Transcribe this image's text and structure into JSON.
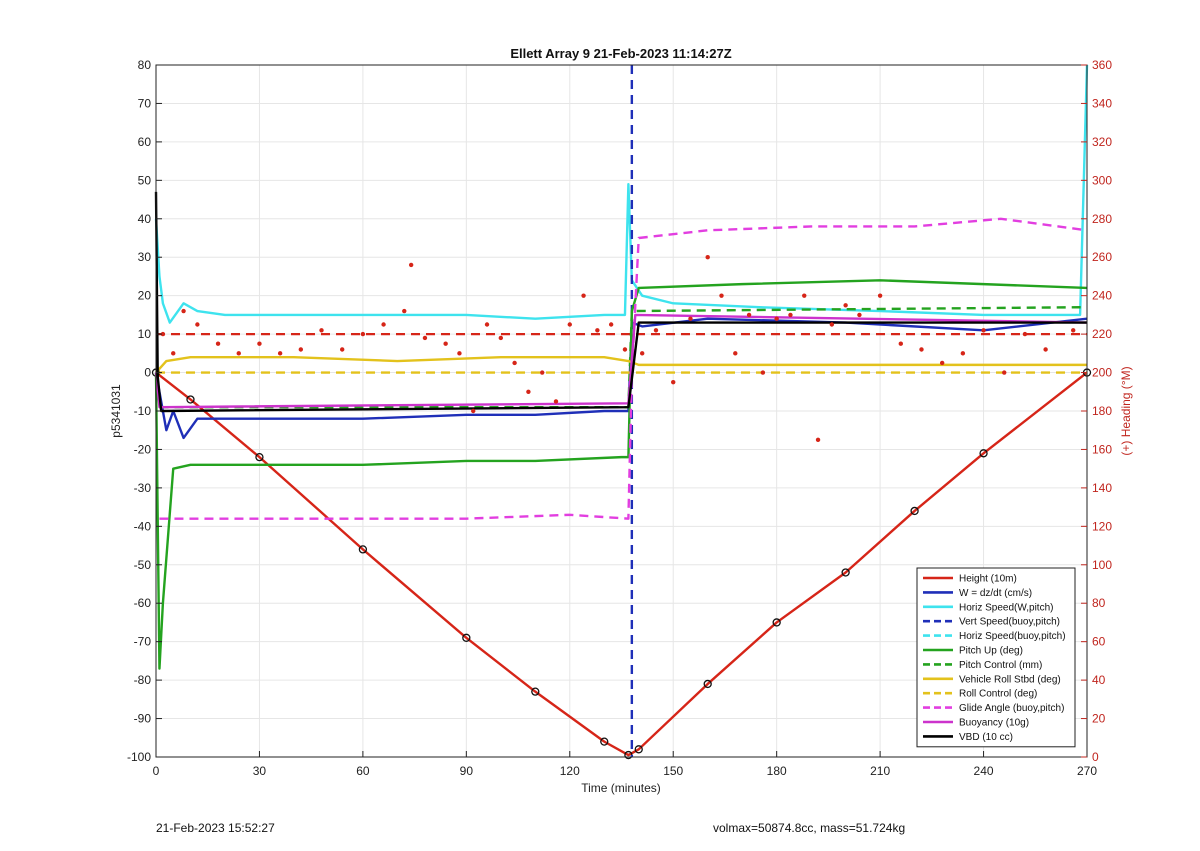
{
  "chart_data": {
    "type": "line",
    "title": "Ellett Array 9 21-Feb-2023 11:14:27Z",
    "xlabel": "Time (minutes)",
    "ylabel": "p5341031",
    "y2label": "(+) Heading (°M)",
    "xlim": [
      0,
      270
    ],
    "ylim": [
      -100,
      80
    ],
    "y2lim": [
      0,
      360
    ],
    "xticks": [
      "0",
      "30",
      "60",
      "90",
      "120",
      "150",
      "180",
      "210",
      "240",
      "270"
    ],
    "yticks": [
      "80",
      "70",
      "60",
      "50",
      "40",
      "30",
      "20",
      "10",
      "0",
      "-10",
      "-20",
      "-30",
      "-40",
      "-50",
      "-60",
      "-70",
      "-80",
      "-90",
      "-100"
    ],
    "y2ticks": [
      "360",
      "340",
      "320",
      "300",
      "280",
      "260",
      "240",
      "220",
      "200",
      "180",
      "160",
      "140",
      "120",
      "100",
      "80",
      "60",
      "40",
      "20",
      "0"
    ],
    "grid": true,
    "legend_position": "bottom-right",
    "series": [
      {
        "name": "Height (10m)",
        "color": "#d62518",
        "style": "solid",
        "axis": "left",
        "x": [
          0,
          10,
          30,
          60,
          90,
          110,
          130,
          137,
          140,
          160,
          180,
          200,
          220,
          240,
          270
        ],
        "y": [
          0,
          -7,
          -22,
          -46,
          -69,
          -83,
          -96,
          -99.5,
          -98,
          -81,
          -65,
          -52,
          -36,
          -21,
          0
        ]
      },
      {
        "name": "W = dz/dt (cm/s)",
        "color": "#1f2fb8",
        "style": "solid",
        "axis": "left",
        "x": [
          0,
          1,
          3,
          5,
          8,
          12,
          20,
          40,
          60,
          90,
          110,
          130,
          137,
          138,
          141,
          160,
          200,
          240,
          270
        ],
        "y": [
          0,
          -5,
          -15,
          -10,
          -17,
          -12,
          -12,
          -12,
          -12,
          -11,
          -11,
          -10,
          -10,
          13,
          12,
          14,
          13,
          11,
          14
        ]
      },
      {
        "name": "Horiz Speed(W,pitch)",
        "color": "#3ee3ee",
        "style": "solid",
        "axis": "left",
        "x": [
          0,
          1,
          2,
          4,
          8,
          12,
          20,
          40,
          60,
          90,
          110,
          130,
          136,
          137,
          138,
          141,
          150,
          175,
          210,
          240,
          268,
          270
        ],
        "y": [
          40,
          25,
          18,
          13,
          18,
          16,
          15,
          15,
          15,
          15,
          14,
          15,
          15,
          49,
          24,
          20,
          18,
          17,
          16,
          15,
          15,
          80
        ]
      },
      {
        "name": "Vert Speed(buoy,pitch)",
        "color": "#1f2fb8",
        "style": "dashed",
        "axis": "left",
        "x": [
          138,
          138
        ],
        "y": [
          80,
          -100
        ]
      },
      {
        "name": "Horiz Speed(buoy,pitch)",
        "color": "#3ee3ee",
        "style": "dashed",
        "axis": "left",
        "x": [],
        "y": []
      },
      {
        "name": "Pitch Up (deg)",
        "color": "#24a31f",
        "style": "solid",
        "axis": "left",
        "x": [
          0,
          1,
          2,
          5,
          10,
          30,
          60,
          90,
          110,
          135,
          137,
          138,
          140,
          170,
          210,
          240,
          270
        ],
        "y": [
          0,
          -77,
          -60,
          -25,
          -24,
          -24,
          -24,
          -23,
          -23,
          -22,
          -22,
          16,
          22,
          23,
          24,
          23,
          22
        ]
      },
      {
        "name": "Pitch Control (mm)",
        "color": "#24a31f",
        "style": "dashed",
        "axis": "left",
        "x": [
          1,
          137,
          138,
          270
        ],
        "y": [
          -9,
          -9,
          16,
          17
        ]
      },
      {
        "name": "Vehicle Roll Stbd (deg)",
        "color": "#e3c21c",
        "style": "solid",
        "axis": "left",
        "x": [
          0,
          3,
          10,
          40,
          70,
          100,
          130,
          137,
          140,
          170,
          200,
          240,
          270
        ],
        "y": [
          0,
          3,
          4,
          4,
          3,
          4,
          4,
          3,
          2,
          2,
          2,
          2,
          2
        ]
      },
      {
        "name": "Roll Control (deg)",
        "color": "#e3c21c",
        "style": "dashed",
        "axis": "left",
        "x": [
          0,
          137,
          138,
          270
        ],
        "y": [
          0,
          0,
          0,
          0
        ]
      },
      {
        "name": "Glide Angle (buoy,pitch)",
        "color": "#e23ee0",
        "style": "dashed",
        "axis": "left",
        "x": [
          1,
          5,
          30,
          60,
          90,
          120,
          137,
          138,
          140,
          160,
          190,
          220,
          245,
          270
        ],
        "y": [
          -38,
          -38,
          -38,
          -38,
          -38,
          -37,
          -38,
          0,
          35,
          37,
          38,
          38,
          40,
          37
        ]
      },
      {
        "name": "Buoyancy (10g)",
        "color": "#cc33cc",
        "style": "solid",
        "axis": "left",
        "x": [
          0,
          1,
          137,
          139,
          270
        ],
        "y": [
          0,
          -9,
          -8,
          15,
          13
        ]
      },
      {
        "name": "VBD (10 cc)",
        "color": "#000000",
        "style": "solid",
        "axis": "left",
        "x": [
          0,
          0.5,
          1.5,
          137,
          140,
          270
        ],
        "y": [
          47,
          -1,
          -10,
          -9,
          13,
          13
        ]
      }
    ],
    "heading_series": {
      "color": "#d62518",
      "axis": "right",
      "marker": "dots",
      "x": [
        2,
        5,
        8,
        12,
        18,
        24,
        30,
        36,
        42,
        48,
        54,
        60,
        66,
        72,
        74,
        78,
        84,
        88,
        92,
        96,
        100,
        104,
        108,
        112,
        116,
        120,
        124,
        128,
        132,
        136,
        141,
        145,
        150,
        155,
        160,
        164,
        168,
        172,
        176,
        180,
        184,
        188,
        192,
        196,
        200,
        204,
        210,
        216,
        222,
        228,
        234,
        240,
        246,
        252,
        258,
        266
      ],
      "y": [
        220,
        210,
        232,
        225,
        215,
        210,
        215,
        210,
        212,
        222,
        212,
        220,
        225,
        232,
        256,
        218,
        215,
        210,
        180,
        225,
        218,
        205,
        190,
        200,
        185,
        225,
        240,
        222,
        225,
        212,
        210,
        222,
        195,
        228,
        260,
        240,
        210,
        230,
        200,
        228,
        230,
        240,
        165,
        225,
        235,
        230,
        240,
        215,
        212,
        205,
        210,
        222,
        200,
        220,
        212,
        222
      ]
    },
    "heading_target": {
      "value": 220,
      "color": "#d62518",
      "style": "dashed"
    }
  },
  "footer": {
    "left": "21-Feb-2023 15:52:27",
    "right": "volmax=50874.8cc, mass=51.724kg"
  }
}
